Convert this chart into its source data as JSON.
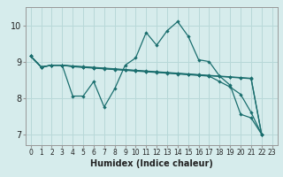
{
  "xlabel": "Humidex (Indice chaleur)",
  "bg_color": "#d6ecec",
  "grid_color": "#b8d8d8",
  "line_color": "#1a6e6e",
  "xlim": [
    -0.5,
    23.5
  ],
  "ylim": [
    6.7,
    10.5
  ],
  "xticks": [
    0,
    1,
    2,
    3,
    4,
    5,
    6,
    7,
    8,
    9,
    10,
    11,
    12,
    13,
    14,
    15,
    16,
    17,
    18,
    19,
    20,
    21,
    22,
    23
  ],
  "yticks": [
    7,
    8,
    9,
    10
  ],
  "series": [
    [
      9.15,
      8.85,
      8.9,
      8.9,
      8.05,
      8.05,
      8.45,
      7.75,
      8.25,
      8.9,
      9.1,
      9.8,
      9.45,
      9.85,
      10.1,
      9.7,
      9.05,
      9.0,
      8.6,
      8.35,
      7.55,
      7.45,
      7.0
    ],
    [
      9.15,
      8.85,
      8.9,
      8.9,
      8.88,
      8.86,
      8.84,
      8.82,
      8.8,
      8.78,
      8.76,
      8.74,
      8.72,
      8.7,
      8.68,
      8.66,
      8.64,
      8.62,
      8.6,
      8.58,
      8.56,
      8.54,
      7.0
    ],
    [
      9.15,
      8.85,
      8.9,
      8.9,
      8.87,
      8.85,
      8.83,
      8.81,
      8.79,
      8.77,
      8.75,
      8.73,
      8.71,
      8.69,
      8.67,
      8.65,
      8.63,
      8.61,
      8.59,
      8.57,
      8.55,
      8.53,
      7.0
    ],
    [
      9.15,
      8.85,
      8.9,
      8.9,
      8.86,
      8.84,
      8.82,
      8.8,
      8.78,
      8.76,
      8.74,
      8.72,
      8.7,
      8.68,
      8.66,
      8.64,
      8.62,
      8.6,
      8.45,
      8.3,
      8.1,
      7.6,
      7.0
    ]
  ],
  "series_x": [
    [
      0,
      1,
      2,
      3,
      4,
      5,
      6,
      7,
      8,
      9,
      10,
      11,
      12,
      13,
      14,
      15,
      16,
      17,
      18,
      19,
      20,
      21,
      22
    ],
    [
      0,
      1,
      2,
      3,
      4,
      5,
      6,
      7,
      8,
      9,
      10,
      11,
      12,
      13,
      14,
      15,
      16,
      17,
      18,
      19,
      20,
      21,
      22
    ],
    [
      0,
      1,
      2,
      3,
      4,
      5,
      6,
      7,
      8,
      9,
      10,
      11,
      12,
      13,
      14,
      15,
      16,
      17,
      18,
      19,
      20,
      21,
      22
    ],
    [
      0,
      1,
      2,
      3,
      4,
      5,
      6,
      7,
      8,
      9,
      10,
      11,
      12,
      13,
      14,
      15,
      16,
      17,
      18,
      19,
      20,
      21,
      22
    ]
  ]
}
